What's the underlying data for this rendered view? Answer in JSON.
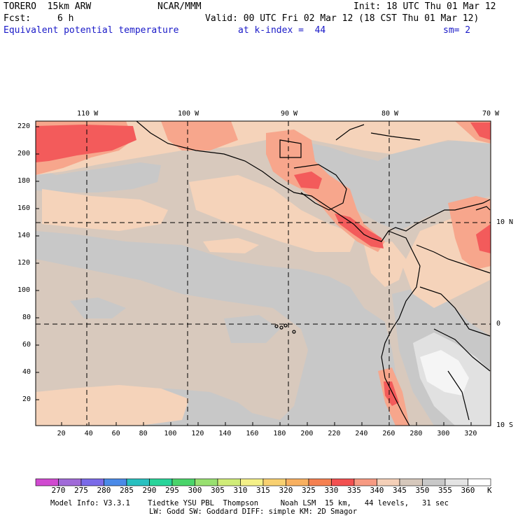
{
  "header": {
    "model": "TORERO  15km ARW",
    "org": "NCAR/MMM",
    "init": "Init: 18 UTC Thu 01 Mar 12",
    "fcst_label": "Fcst:",
    "fcst_value": "6 h",
    "valid": "Valid: 00 UTC Fri 02 Mar 12 (18 CST Thu 01 Mar 12)",
    "field": "Equivalent potential temperature",
    "level": "at k-index =  44",
    "smooth": "sm= 2"
  },
  "map": {
    "lon_labels": [
      "110 W",
      "100 W",
      "90 W",
      "80 W",
      "70 W"
    ],
    "lat_labels": [
      "10 N",
      "0",
      "10 S"
    ],
    "y_ticks": [
      "220",
      "200",
      "180",
      "160",
      "140",
      "120",
      "100",
      "80",
      "60",
      "40",
      "20"
    ],
    "x_ticks": [
      "20",
      "40",
      "60",
      "80",
      "100",
      "120",
      "140",
      "160",
      "180",
      "200",
      "220",
      "240",
      "260",
      "280",
      "300",
      "320"
    ],
    "colors": {
      "bg_345": "#d8c9bd",
      "c340": "#f5d3ba",
      "c335": "#f7a68c",
      "c330": "#f35b5b",
      "c350": "#c8c8c8",
      "c355": "#e1e1e1",
      "c360": "#f5f5f5"
    }
  },
  "colorbar": {
    "unit": "K",
    "values": [
      "270",
      "275",
      "280",
      "285",
      "290",
      "295",
      "300",
      "305",
      "310",
      "315",
      "320",
      "325",
      "330",
      "335",
      "340",
      "345",
      "350",
      "355",
      "360"
    ],
    "swatches": [
      "#d04ad0",
      "#a06ad8",
      "#7a6ae8",
      "#4a8ae8",
      "#28c0c0",
      "#28d49a",
      "#4ad46a",
      "#98e070",
      "#d0ec78",
      "#f4f088",
      "#f8d070",
      "#f8b060",
      "#f58050",
      "#f25050",
      "#f79a82",
      "#f5d0b8",
      "#d6c8bc",
      "#c8c8c8",
      "#e4e4e4",
      "#ffffff"
    ]
  },
  "footer": {
    "line1": "Model Info: V3.3.1    Tiedtke YSU PBL  Thompson     Noah LSM  15 km,   44 levels,   31 sec",
    "line2": "LW: Godd SW: Goddard DIFF: simple KM: 2D Smagor"
  }
}
